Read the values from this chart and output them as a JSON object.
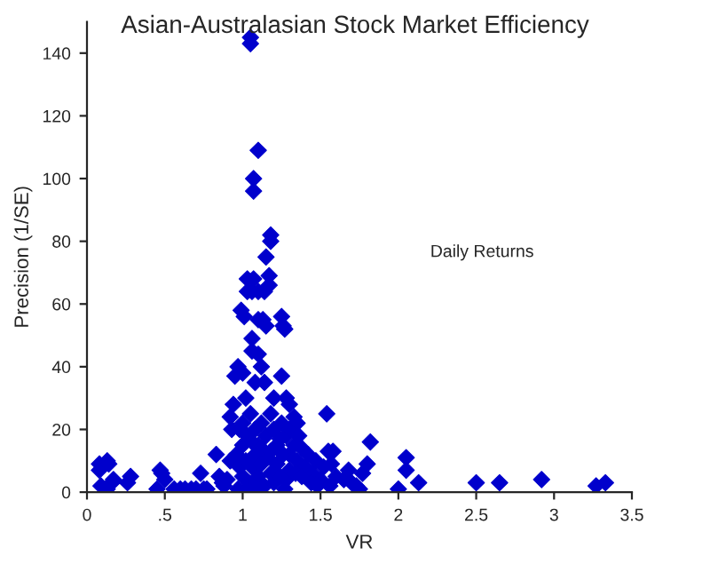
{
  "chart_data": {
    "type": "scatter",
    "title": "Asian-Australasian Stock Market Efficiency",
    "xlabel": "VR",
    "ylabel": "Precision (1/SE)",
    "annotations": [
      "Daily Returns"
    ],
    "xlim": [
      0,
      3.5
    ],
    "ylim": [
      0,
      150
    ],
    "xticks": [
      0,
      {
        "value": 0.5,
        "label": ".5"
      },
      1,
      1.5,
      2,
      2.5,
      3,
      3.5
    ],
    "yticks": [
      0,
      20,
      40,
      60,
      80,
      100,
      120,
      140
    ],
    "grid": false,
    "legend": false,
    "marker": "diamond",
    "series": [
      {
        "color": "#0000cc",
        "x": [
          0.08,
          0.08,
          0.09,
          0.13,
          0.14,
          0.13,
          0.16,
          0.17,
          0.26,
          0.28,
          0.45,
          0.47,
          0.48,
          0.5,
          0.56,
          0.6,
          0.63,
          0.67,
          0.7,
          0.73,
          0.75,
          0.77,
          0.83,
          0.85,
          0.87,
          0.88,
          0.9,
          0.92,
          0.92,
          0.93,
          1.05,
          1.05,
          1.1,
          1.07,
          1.07,
          1.18,
          1.18,
          1.15,
          1.03,
          1.07,
          1.17,
          1.03,
          1.06,
          1.1,
          1.14,
          1.17,
          0.99,
          1.01,
          1.1,
          1.13,
          1.15,
          1.25,
          1.26,
          1.27,
          1.06,
          1.06,
          1.1,
          1.12,
          0.97,
          1.0,
          0.95,
          1.25,
          1.08,
          1.14,
          0.94,
          1.02,
          1.2,
          1.28,
          1.3,
          1.33,
          1.35,
          1.54,
          0.98,
          1.0,
          1.03,
          1.05,
          1.08,
          1.1,
          1.12,
          1.15,
          1.18,
          1.2,
          1.22,
          1.25,
          1.28,
          1.3,
          1.33,
          1.35,
          1.38,
          1.4,
          1.42,
          1.45,
          1.47,
          1.5,
          0.96,
          0.98,
          1.0,
          1.02,
          1.04,
          1.06,
          1.08,
          1.1,
          1.12,
          1.14,
          1.16,
          1.18,
          1.2,
          1.22,
          1.24,
          1.26,
          1.28,
          1.3,
          1.34,
          1.38,
          1.44,
          1.48,
          0.97,
          1.03,
          1.09,
          1.27,
          1.0,
          1.06,
          1.12,
          1.18,
          1.24,
          1.3,
          1.36,
          1.52,
          1.55,
          1.58,
          1.57,
          1.56,
          1.6,
          1.65,
          1.68,
          1.7,
          1.73,
          1.75,
          1.77,
          1.8,
          1.82,
          2.0,
          2.05,
          2.05,
          2.13,
          2.5,
          2.65,
          2.92,
          3.27,
          3.33
        ],
        "values": [
          9,
          7,
          2,
          10,
          9,
          1,
          3,
          4,
          3,
          5,
          1,
          7,
          6,
          4,
          1,
          1,
          1,
          1,
          1,
          6,
          1,
          1,
          12,
          5,
          3,
          2,
          4,
          10,
          24,
          20,
          145,
          143,
          109,
          100,
          96,
          82,
          80,
          75,
          68,
          68,
          69,
          64,
          64,
          64,
          64,
          66,
          58,
          56,
          55,
          55,
          53,
          56,
          53,
          52,
          49,
          45,
          44,
          40,
          40,
          38,
          37,
          37,
          35,
          35,
          28,
          30,
          30,
          30,
          28,
          24,
          22,
          25,
          20,
          22,
          18,
          25,
          20,
          15,
          22,
          18,
          25,
          20,
          15,
          22,
          18,
          12,
          15,
          10,
          14,
          8,
          12,
          6,
          10,
          4,
          12,
          8,
          5,
          10,
          3,
          8,
          12,
          5,
          9,
          2,
          11,
          6,
          3,
          9,
          5,
          12,
          4,
          7,
          6,
          5,
          3,
          2,
          1,
          1,
          1,
          1,
          15,
          16,
          14,
          13,
          17,
          20,
          18,
          8,
          13,
          13,
          9,
          2,
          5,
          4,
          7,
          3,
          2,
          1,
          6,
          9,
          16,
          1,
          11,
          7,
          3,
          3,
          3,
          4,
          2,
          3
        ]
      }
    ]
  }
}
